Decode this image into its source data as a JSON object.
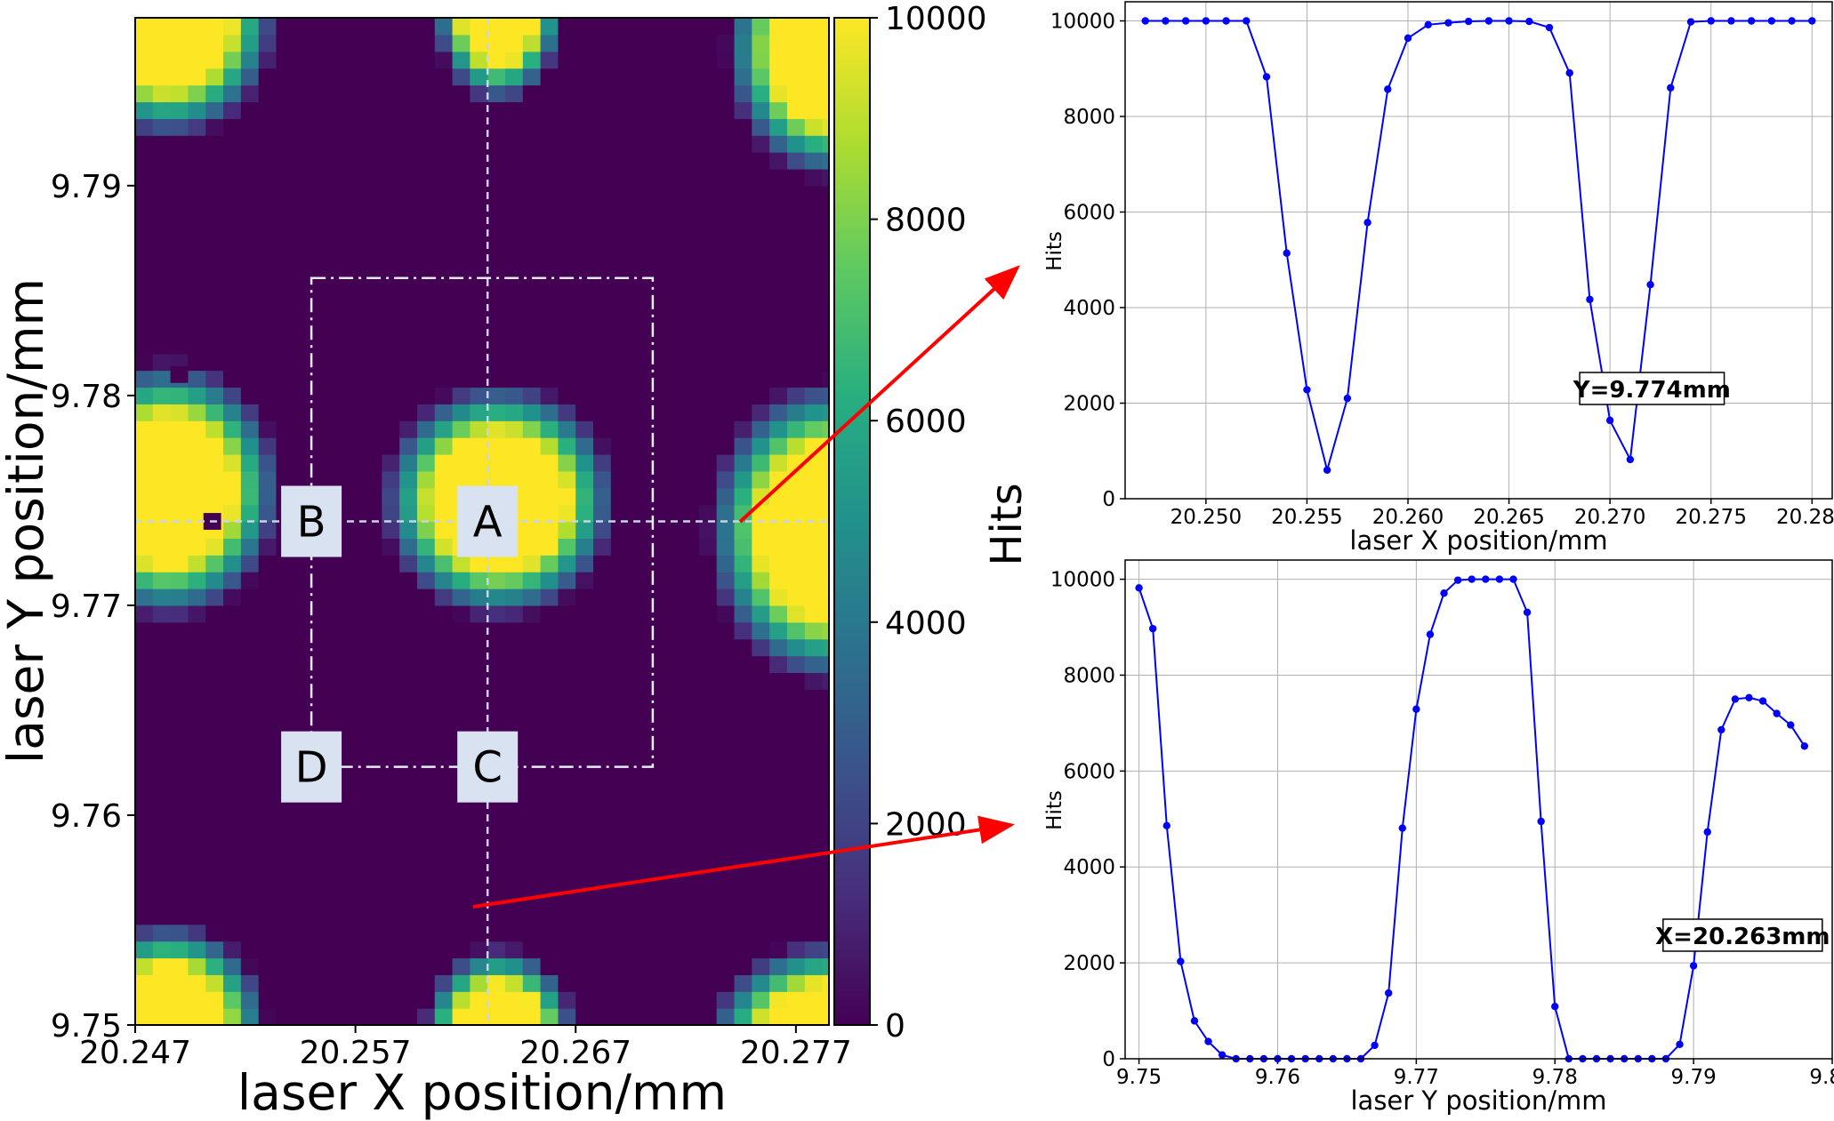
{
  "colors": {
    "line": "#0000ff",
    "arrow": "#ff0000",
    "guide": "#c9d4e8",
    "region_box": "#d9e2f1",
    "viridis": [
      "#440154",
      "#472d7b",
      "#3b528b",
      "#2c728e",
      "#21918c",
      "#28ae80",
      "#5ec962",
      "#addc30",
      "#fde725"
    ]
  },
  "heatmap": {
    "xlabel": "laser X position/mm",
    "ylabel": "laser Y position/mm",
    "x_ticks": [
      "20.247",
      "20.257",
      "20.267",
      "20.277"
    ],
    "x_tick_values": [
      20.247,
      20.257,
      20.267,
      20.277
    ],
    "y_ticks": [
      "9.75",
      "9.76",
      "9.77",
      "9.78",
      "9.79"
    ],
    "y_tick_values": [
      9.75,
      9.76,
      9.77,
      9.78,
      9.79
    ],
    "xlim": [
      20.247,
      20.2785
    ],
    "ylim": [
      9.75,
      9.798
    ],
    "cell_dx": 0.0008,
    "cell_dy": 0.0008,
    "pixel_centers": [
      [
        20.258,
        9.79
      ],
      [
        20.262,
        9.787
      ],
      [
        20.249,
        9.781
      ],
      [
        20.2545,
        9.776
      ],
      [
        20.2505,
        9.774
      ],
      [
        20.27,
        9.774
      ],
      [
        20.2515,
        9.76
      ]
    ],
    "regions": [
      "A",
      "B",
      "C",
      "D"
    ],
    "region_centers": [
      [
        20.263,
        9.774
      ],
      [
        20.255,
        9.774
      ],
      [
        20.263,
        9.7623
      ],
      [
        20.255,
        9.7623
      ]
    ],
    "rect_x": [
      20.255,
      20.2705
    ],
    "rect_y": [
      9.7623,
      9.7856
    ],
    "cut_x": 20.263,
    "cut_y": 9.774,
    "colorbar": {
      "label": "Hits",
      "ticks": [
        "0",
        "2000",
        "4000",
        "6000",
        "8000",
        "10000"
      ],
      "tick_values": [
        0,
        2000,
        4000,
        6000,
        8000,
        10000
      ],
      "range": [
        0,
        10000
      ]
    }
  },
  "chart_data": [
    {
      "type": "line",
      "title": "",
      "xlabel": "laser X position/mm",
      "ylabel": "Hits",
      "annotation": "Y=9.774mm",
      "xlim": [
        20.246,
        20.281
      ],
      "ylim": [
        0,
        10400
      ],
      "grid": true,
      "x_ticks": [
        "20.250",
        "20.255",
        "20.260",
        "20.265",
        "20.270",
        "20.275",
        "20.280"
      ],
      "x_tick_values": [
        20.25,
        20.255,
        20.26,
        20.265,
        20.27,
        20.275,
        20.28
      ],
      "y_ticks": [
        "0",
        "2000",
        "4000",
        "6000",
        "8000",
        "10000"
      ],
      "y_tick_values": [
        0,
        2000,
        4000,
        6000,
        8000,
        10000
      ],
      "x": [
        20.247,
        20.248,
        20.249,
        20.25,
        20.251,
        20.252,
        20.253,
        20.254,
        20.255,
        20.256,
        20.257,
        20.258,
        20.259,
        20.26,
        20.261,
        20.262,
        20.263,
        20.264,
        20.265,
        20.266,
        20.267,
        20.268,
        20.269,
        20.27,
        20.271,
        20.272,
        20.273,
        20.274,
        20.275,
        20.276,
        20.277,
        20.278,
        20.279,
        20.28
      ],
      "values": [
        10000,
        10000,
        10000,
        10000,
        10000,
        10000,
        8830,
        5140,
        2280,
        600,
        2100,
        5780,
        8570,
        9640,
        9920,
        9960,
        9990,
        10000,
        10000,
        9990,
        9860,
        8910,
        4170,
        1640,
        820,
        4480,
        8600,
        9980,
        10000,
        10000,
        10000,
        10000,
        10000,
        10000
      ]
    },
    {
      "type": "line",
      "title": "",
      "xlabel": "laser Y position/mm",
      "ylabel": "Hits",
      "annotation": "X=20.263mm",
      "xlim": [
        9.749,
        9.8
      ],
      "ylim": [
        0,
        10400
      ],
      "grid": true,
      "x_ticks": [
        "9.75",
        "9.76",
        "9.77",
        "9.78",
        "9.79",
        "9.80"
      ],
      "x_tick_values": [
        9.75,
        9.76,
        9.77,
        9.78,
        9.79,
        9.8
      ],
      "y_ticks": [
        "0",
        "2000",
        "4000",
        "6000",
        "8000",
        "10000"
      ],
      "y_tick_values": [
        0,
        2000,
        4000,
        6000,
        8000,
        10000
      ],
      "x": [
        9.75,
        9.751,
        9.752,
        9.753,
        9.754,
        9.755,
        9.756,
        9.757,
        9.758,
        9.759,
        9.76,
        9.761,
        9.762,
        9.763,
        9.764,
        9.765,
        9.766,
        9.767,
        9.768,
        9.769,
        9.77,
        9.771,
        9.772,
        9.773,
        9.774,
        9.775,
        9.776,
        9.777,
        9.778,
        9.779,
        9.78,
        9.781,
        9.782,
        9.783,
        9.784,
        9.785,
        9.786,
        9.787,
        9.788,
        9.789,
        9.79,
        9.791,
        9.792,
        9.793,
        9.794,
        9.795,
        9.796,
        9.797,
        9.798
      ],
      "values": [
        9820,
        8970,
        4860,
        2030,
        790,
        360,
        80,
        0,
        0,
        0,
        0,
        0,
        0,
        0,
        0,
        0,
        0,
        280,
        1370,
        4810,
        7290,
        8850,
        9710,
        9980,
        10000,
        10000,
        10000,
        10000,
        9310,
        4950,
        1090,
        0,
        0,
        0,
        0,
        0,
        0,
        0,
        0,
        300,
        1940,
        4730,
        6860,
        7500,
        7530,
        7460,
        7200,
        6960,
        6520
      ]
    }
  ]
}
